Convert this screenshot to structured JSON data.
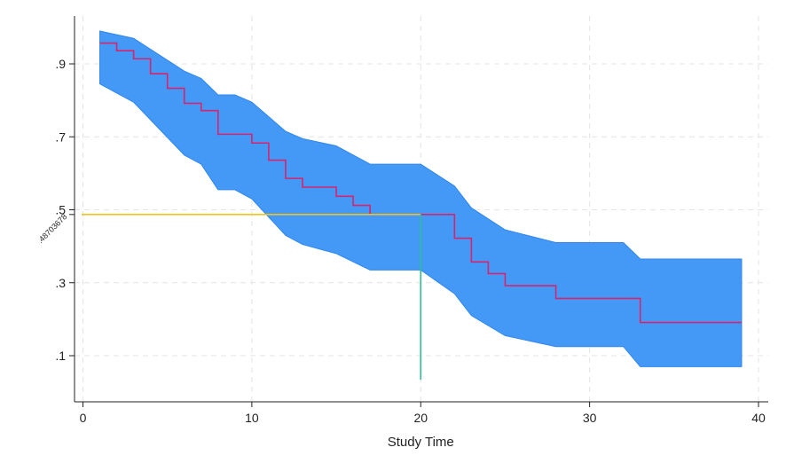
{
  "chart_data": {
    "type": "line",
    "title": "",
    "xlabel": "Study Time",
    "ylabel": "",
    "xlim": [
      0,
      40
    ],
    "ylim": [
      0,
      1
    ],
    "x_ticks": [
      0,
      10,
      20,
      30,
      40
    ],
    "x_tick_labels": [
      "0",
      "10",
      "20",
      "30",
      "40"
    ],
    "y_ticks": [
      0.1,
      0.3,
      0.5,
      0.7,
      0.9
    ],
    "y_tick_labels": [
      ".1",
      ".3",
      ".5",
      ".7",
      ".9"
    ],
    "grid": true,
    "legend": "none",
    "colors": {
      "band": "#4499f7",
      "band_edge": "#2f86ee",
      "survival": "#d6246e",
      "ref_horizontal": "#f2c319",
      "ref_vertical": "#2bbf8f",
      "grid": "#e4e4e4",
      "axis": "#222222"
    },
    "series": [
      {
        "kind": "step",
        "x": [
          1,
          2,
          3,
          4,
          5,
          6,
          7,
          8,
          10,
          11,
          12,
          13,
          15,
          16,
          17,
          20,
          22,
          23,
          24,
          25,
          28,
          33,
          39
        ],
        "y": [
          0.957,
          0.936,
          0.914,
          0.873,
          0.833,
          0.792,
          0.772,
          0.707,
          0.683,
          0.636,
          0.586,
          0.562,
          0.537,
          0.512,
          0.487,
          0.487,
          0.422,
          0.357,
          0.325,
          0.292,
          0.257,
          0.191,
          0.191
        ]
      },
      {
        "kind": "band",
        "x": [
          1,
          3,
          6,
          7,
          8,
          9,
          10,
          11,
          12,
          13,
          15,
          17,
          20,
          22,
          23,
          25,
          28,
          32,
          33,
          39
        ],
        "upper": [
          0.99,
          0.97,
          0.88,
          0.86,
          0.815,
          0.815,
          0.795,
          0.755,
          0.715,
          0.695,
          0.675,
          0.625,
          0.625,
          0.565,
          0.505,
          0.445,
          0.41,
          0.41,
          0.365,
          0.365
        ],
        "lower": [
          0.845,
          0.795,
          0.65,
          0.625,
          0.555,
          0.555,
          0.53,
          0.48,
          0.43,
          0.405,
          0.38,
          0.335,
          0.335,
          0.27,
          0.21,
          0.155,
          0.125,
          0.125,
          0.07,
          0.07
        ]
      }
    ],
    "reference_lines": {
      "horizontal": {
        "y": 0.48703678,
        "x_end": 20,
        "label": ".48703678"
      },
      "vertical": {
        "x": 20,
        "y_start": 0,
        "y_end": 0.487
      }
    }
  }
}
